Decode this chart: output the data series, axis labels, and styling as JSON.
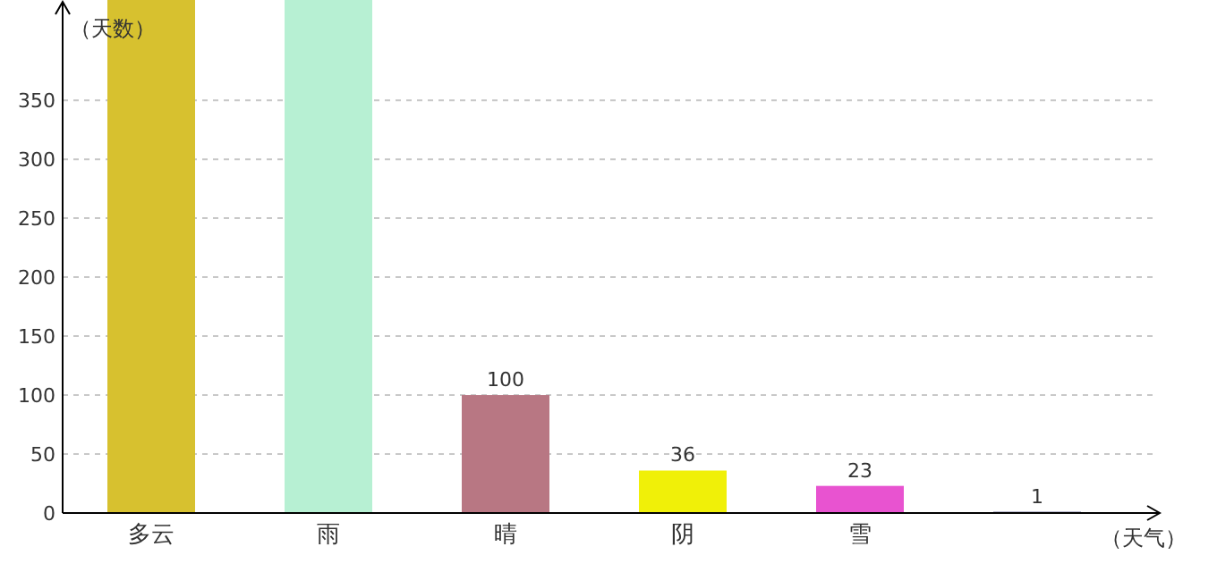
{
  "chart_data": {
    "type": "bar",
    "xlabel": "（天气）",
    "ylabel": "（天数）",
    "categories": [
      "多云",
      "雨",
      "晴",
      "阴",
      "雪",
      null
    ],
    "values": [
      435,
      435,
      100,
      36,
      23,
      1
    ],
    "colors": [
      "#d7c12f",
      "#b7f0d3",
      "#b87783",
      "#f0f008",
      "#e853d0",
      "#2a2a6a"
    ],
    "value_labels": [
      null,
      null,
      "100",
      "36",
      "23",
      "1"
    ],
    "ylim": [
      0,
      435
    ],
    "yticks": [
      0,
      50,
      100,
      150,
      200,
      250,
      300,
      350
    ],
    "grid": "y"
  }
}
